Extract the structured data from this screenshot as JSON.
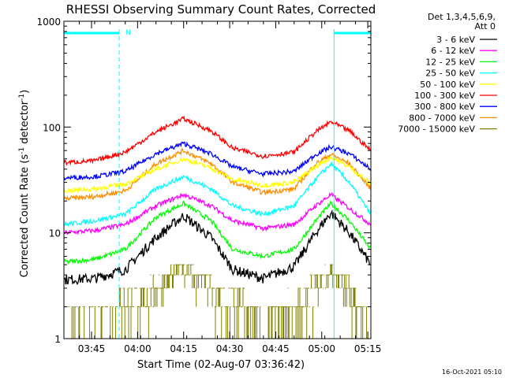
{
  "chart_data": {
    "type": "line",
    "title": "RHESSI Observing Summary Count Rates, Corrected",
    "xlabel": "Start Time (02-Aug-07 03:36:42)",
    "ylabel_main": "Corrected Count Rate (s",
    "ylabel_sup1": "-1",
    "ylabel_mid": " detector",
    "ylabel_sup2": "-1",
    "ylabel_end": ")",
    "y_scale": "log",
    "ylim": [
      1,
      1000
    ],
    "y_ticks": [
      {
        "value": 1,
        "label": "1"
      },
      {
        "value": 10,
        "label": "10"
      },
      {
        "value": 100,
        "label": "100"
      },
      {
        "value": 1000,
        "label": "1000"
      }
    ],
    "xlim_minutes_after_0336": [
      0,
      100
    ],
    "x_ticks": [
      {
        "minute": 9,
        "label": "03:45"
      },
      {
        "minute": 24,
        "label": "04:00"
      },
      {
        "minute": 39,
        "label": "04:15"
      },
      {
        "minute": 54,
        "label": "04:30"
      },
      {
        "minute": 69,
        "label": "04:45"
      },
      {
        "minute": 84,
        "label": "05:00"
      },
      {
        "minute": 99,
        "label": "05:15"
      }
    ],
    "legend_header": [
      "Det 1,3,4,5,6,9,",
      "Att 0"
    ],
    "legend_position": "right",
    "night_intervals": [
      {
        "start": 0,
        "end": 18,
        "label": "N"
      },
      {
        "start": 88,
        "end": 100,
        "label": ""
      }
    ],
    "series": [
      {
        "name": "3 - 6 keV",
        "color": "#000000",
        "peak_minutes": [
          39,
          87
        ],
        "baseline": [
          [
            0,
            3.6
          ],
          [
            10,
            3.7
          ],
          [
            20,
            4.5
          ],
          [
            30,
            9
          ],
          [
            39,
            14.5
          ],
          [
            48,
            9
          ],
          [
            55,
            4.5
          ],
          [
            65,
            3.7
          ],
          [
            75,
            4.8
          ],
          [
            82,
            10
          ],
          [
            87,
            15.5
          ],
          [
            93,
            10
          ],
          [
            100,
            5
          ]
        ]
      },
      {
        "name": "6 - 12 keV",
        "color": "#ff00ff",
        "baseline": [
          [
            0,
            10
          ],
          [
            10,
            10.5
          ],
          [
            20,
            12
          ],
          [
            30,
            18
          ],
          [
            39,
            23
          ],
          [
            48,
            18
          ],
          [
            55,
            13
          ],
          [
            65,
            11
          ],
          [
            75,
            12
          ],
          [
            82,
            18
          ],
          [
            87,
            23
          ],
          [
            93,
            17
          ],
          [
            100,
            12
          ]
        ]
      },
      {
        "name": "12 - 25 keV",
        "color": "#00ff00",
        "baseline": [
          [
            0,
            5.3
          ],
          [
            10,
            5.6
          ],
          [
            20,
            7
          ],
          [
            30,
            14
          ],
          [
            39,
            19
          ],
          [
            48,
            13
          ],
          [
            55,
            7
          ],
          [
            65,
            6
          ],
          [
            75,
            7
          ],
          [
            82,
            13
          ],
          [
            87,
            19
          ],
          [
            93,
            13
          ],
          [
            100,
            7
          ]
        ]
      },
      {
        "name": "25 - 50 keV",
        "color": "#00ffff",
        "baseline": [
          [
            0,
            12
          ],
          [
            10,
            13
          ],
          [
            20,
            15
          ],
          [
            30,
            26
          ],
          [
            39,
            34
          ],
          [
            48,
            26
          ],
          [
            55,
            18
          ],
          [
            65,
            15
          ],
          [
            75,
            18
          ],
          [
            82,
            32
          ],
          [
            87,
            45
          ],
          [
            93,
            30
          ],
          [
            100,
            15
          ]
        ]
      },
      {
        "name": "50 - 100 keV",
        "color": "#ffff00",
        "baseline": [
          [
            0,
            25
          ],
          [
            10,
            26
          ],
          [
            20,
            29
          ],
          [
            30,
            40
          ],
          [
            39,
            50
          ],
          [
            48,
            41
          ],
          [
            55,
            32
          ],
          [
            65,
            28
          ],
          [
            75,
            30
          ],
          [
            82,
            42
          ],
          [
            87,
            52
          ],
          [
            93,
            42
          ],
          [
            100,
            29
          ]
        ]
      },
      {
        "name": "100 - 300 keV",
        "color": "#ff0000",
        "baseline": [
          [
            0,
            46
          ],
          [
            10,
            48
          ],
          [
            20,
            58
          ],
          [
            30,
            90
          ],
          [
            39,
            120
          ],
          [
            48,
            92
          ],
          [
            55,
            63
          ],
          [
            65,
            53
          ],
          [
            75,
            58
          ],
          [
            82,
            90
          ],
          [
            87,
            112
          ],
          [
            93,
            92
          ],
          [
            100,
            60
          ]
        ]
      },
      {
        "name": "300 - 800 keV",
        "color": "#0000ff",
        "baseline": [
          [
            0,
            33
          ],
          [
            10,
            34
          ],
          [
            20,
            38
          ],
          [
            30,
            56
          ],
          [
            39,
            70
          ],
          [
            48,
            56
          ],
          [
            55,
            42
          ],
          [
            65,
            36
          ],
          [
            75,
            38
          ],
          [
            82,
            55
          ],
          [
            87,
            65
          ],
          [
            93,
            56
          ],
          [
            100,
            40
          ]
        ]
      },
      {
        "name": "800 - 7000 keV",
        "color": "#ff8c00",
        "baseline": [
          [
            0,
            21
          ],
          [
            10,
            22
          ],
          [
            20,
            25
          ],
          [
            30,
            45
          ],
          [
            39,
            60
          ],
          [
            48,
            45
          ],
          [
            55,
            30
          ],
          [
            65,
            24
          ],
          [
            75,
            26
          ],
          [
            82,
            45
          ],
          [
            87,
            55
          ],
          [
            93,
            45
          ],
          [
            100,
            26
          ]
        ]
      },
      {
        "name": "7000 - 15000 keV",
        "color": "#808000",
        "baseline": [
          [
            0,
            1.1
          ],
          [
            12,
            1.4
          ],
          [
            22,
            2.3
          ],
          [
            32,
            3.5
          ],
          [
            39,
            4.8
          ],
          [
            46,
            3.5
          ],
          [
            56,
            2.3
          ],
          [
            66,
            1.4
          ],
          [
            76,
            2.1
          ],
          [
            82,
            3.3
          ],
          [
            87,
            4.6
          ],
          [
            93,
            3.1
          ],
          [
            100,
            1.3
          ]
        ]
      }
    ]
  },
  "footer": {
    "timestamp": "16-Oct-2021 05:10"
  }
}
